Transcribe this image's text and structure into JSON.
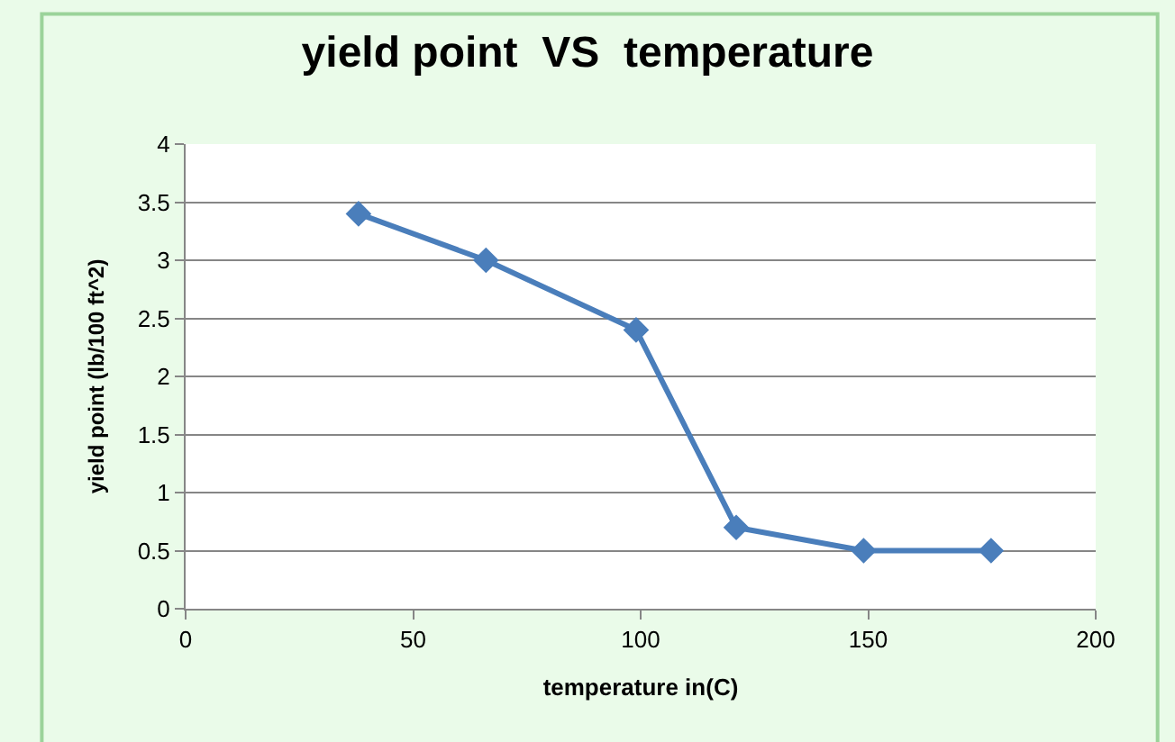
{
  "chart_data": {
    "type": "line",
    "title": "yield point  VS  temperature",
    "xlabel": "temperature in(C)",
    "ylabel": "yield point (lb/100 ft^2)",
    "x": [
      38,
      66,
      99,
      121,
      149,
      177
    ],
    "series": [
      {
        "color": "#4a7ebb",
        "values": [
          3.4,
          3.0,
          2.4,
          0.7,
          0.5,
          0.5
        ]
      }
    ],
    "xlim": [
      0,
      200
    ],
    "xticks": [
      0,
      50,
      100,
      150,
      200
    ],
    "ylim": [
      0,
      4
    ],
    "yticks": [
      0,
      0.5,
      1,
      1.5,
      2,
      2.5,
      3,
      3.5,
      4
    ],
    "grid": "y",
    "legend": false,
    "marker": "diamond",
    "line_style": "solid"
  }
}
